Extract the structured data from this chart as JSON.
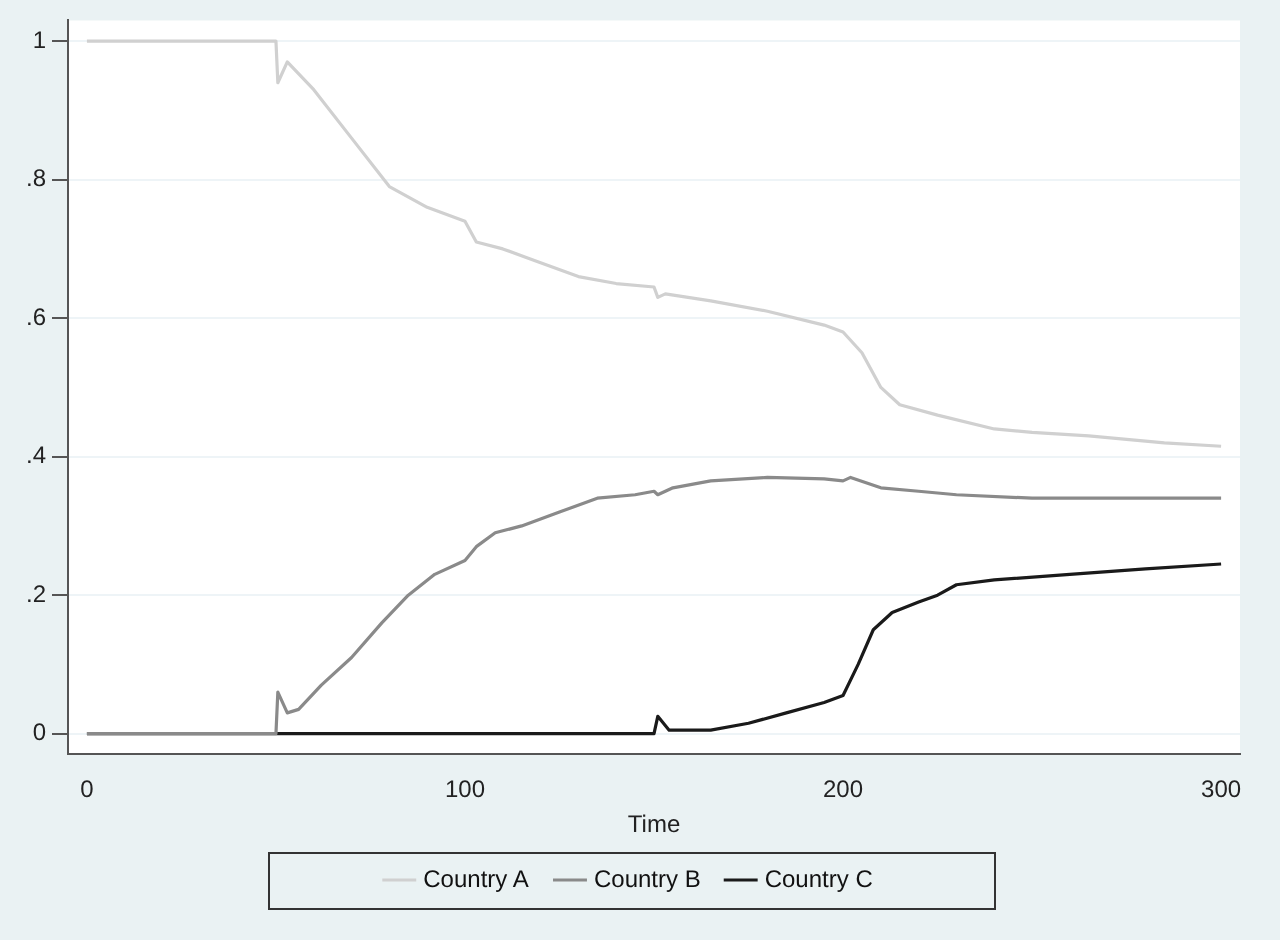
{
  "chart_data": {
    "type": "line",
    "xlabel": "Time",
    "xlim": [
      -5,
      305
    ],
    "xticks": [
      0,
      100,
      200,
      300
    ],
    "ylim": [
      -0.03,
      1.03
    ],
    "yticks": [
      {
        "value": 0,
        "label": "0"
      },
      {
        "value": 0.2,
        "label": ".2"
      },
      {
        "value": 0.4,
        "label": ".4"
      },
      {
        "value": 0.6,
        "label": ".6"
      },
      {
        "value": 0.8,
        "label": ".8"
      },
      {
        "value": 1,
        "label": "1"
      }
    ],
    "grid": "y",
    "legend": "bottom",
    "marker": "none",
    "line_style": "solid",
    "series": [
      {
        "name": "Country A",
        "color": "#d0d0d0",
        "x": [
          0,
          50,
          50.5,
          53,
          60,
          70,
          80,
          90,
          100,
          103,
          110,
          120,
          130,
          140,
          150,
          151,
          153,
          165,
          180,
          195,
          200,
          205,
          210,
          215,
          225,
          240,
          250,
          265,
          285,
          300
        ],
        "values": [
          1,
          1,
          0.94,
          0.97,
          0.93,
          0.86,
          0.79,
          0.76,
          0.74,
          0.71,
          0.7,
          0.68,
          0.66,
          0.65,
          0.645,
          0.63,
          0.635,
          0.625,
          0.61,
          0.59,
          0.58,
          0.55,
          0.5,
          0.475,
          0.46,
          0.44,
          0.435,
          0.43,
          0.42,
          0.415
        ]
      },
      {
        "name": "Country B",
        "color": "#8a8a8a",
        "x": [
          0,
          50,
          50.5,
          53,
          56,
          62,
          70,
          78,
          85,
          92,
          100,
          103,
          108,
          115,
          125,
          135,
          145,
          150,
          151,
          155,
          165,
          180,
          195,
          200,
          202,
          210,
          220,
          230,
          250,
          300
        ],
        "values": [
          0,
          0,
          0.06,
          0.03,
          0.035,
          0.07,
          0.11,
          0.16,
          0.2,
          0.23,
          0.25,
          0.27,
          0.29,
          0.3,
          0.32,
          0.34,
          0.345,
          0.35,
          0.345,
          0.355,
          0.365,
          0.37,
          0.368,
          0.365,
          0.37,
          0.355,
          0.35,
          0.345,
          0.34,
          0.34
        ]
      },
      {
        "name": "Country C",
        "color": "#1a1a1a",
        "x": [
          0,
          150,
          151,
          154,
          165,
          175,
          185,
          195,
          200,
          204,
          208,
          213,
          220,
          225,
          230,
          240,
          260,
          280,
          300
        ],
        "values": [
          0,
          0,
          0.025,
          0.005,
          0.005,
          0.015,
          0.03,
          0.045,
          0.055,
          0.1,
          0.15,
          0.175,
          0.19,
          0.2,
          0.215,
          0.222,
          0.23,
          0.238,
          0.245
        ]
      }
    ]
  }
}
